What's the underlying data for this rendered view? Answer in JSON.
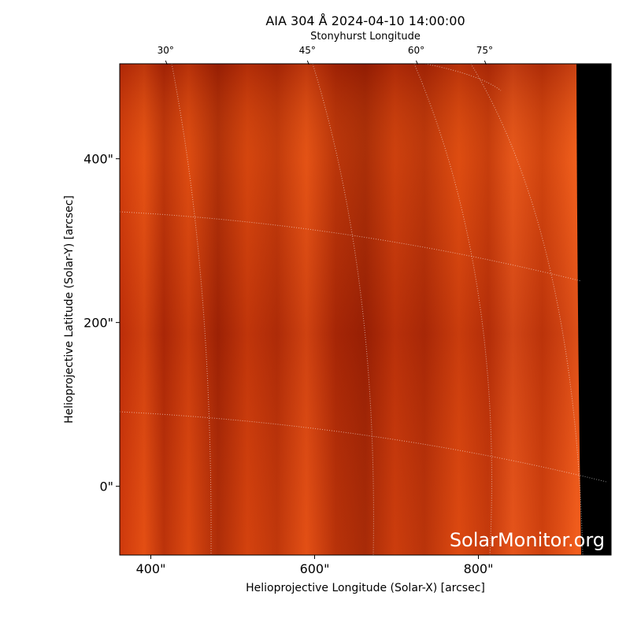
{
  "chart_data": {
    "type": "image",
    "title": "AIA 304 Å 2024-04-10 14:00:00",
    "xlabel": "Helioprojective Longitude (Solar-X) [arcsec]",
    "ylabel": "Helioprojective Latitude (Solar-Y) [arcsec]",
    "x2label": "Stonyhurst Longitude",
    "xlim": [
      362,
      962
    ],
    "ylim": [
      -84,
      516
    ],
    "xticks": [
      {
        "value": 400,
        "label": "400\""
      },
      {
        "value": 600,
        "label": "600\""
      },
      {
        "value": 800,
        "label": "800\""
      }
    ],
    "yticks": [
      {
        "value": 0,
        "label": "0\""
      },
      {
        "value": 200,
        "label": "200\""
      },
      {
        "value": 400,
        "label": "400\""
      }
    ],
    "x2ticks": [
      {
        "value": 30,
        "label": "30°"
      },
      {
        "value": 45,
        "label": "45°"
      },
      {
        "value": 60,
        "label": "60°"
      },
      {
        "value": 75,
        "label": "75°"
      }
    ],
    "watermark": "SolarMonitor.org"
  }
}
